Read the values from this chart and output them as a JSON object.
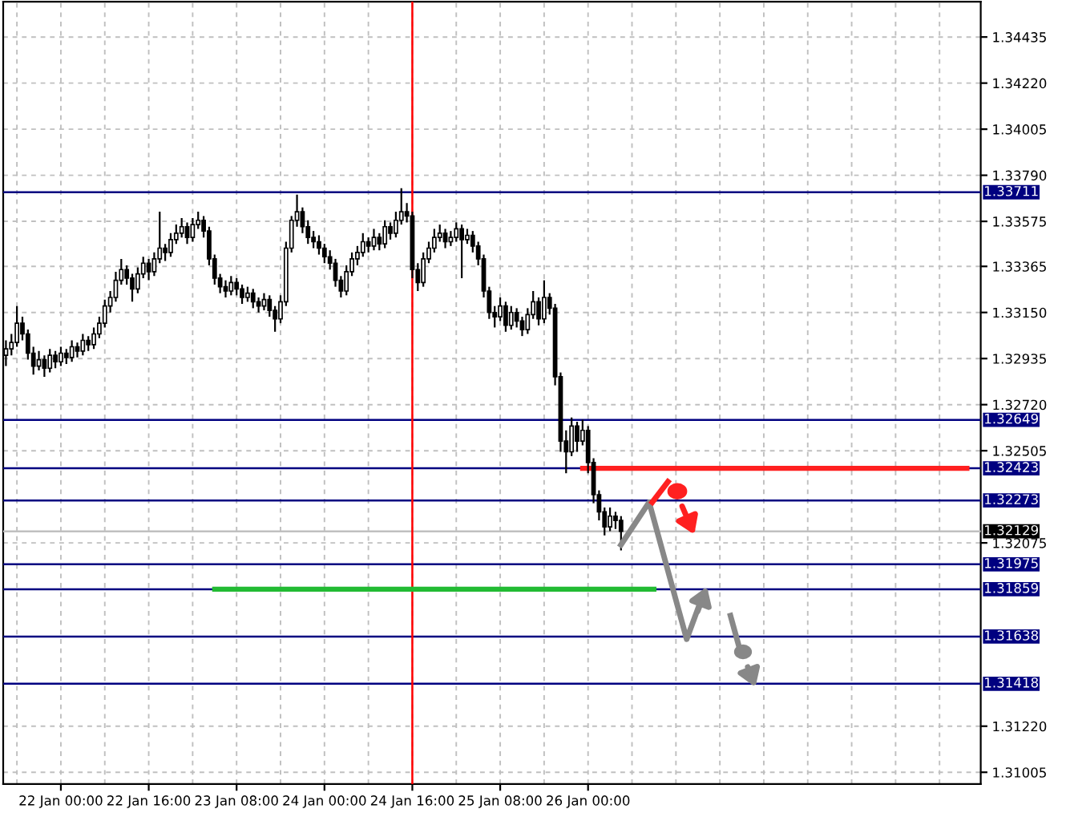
{
  "chart_data": {
    "type": "candlestick",
    "color": "#000000",
    "categories": [
      null,
      null,
      null,
      null,
      null,
      null,
      null,
      null,
      null,
      null,
      "22 Jan 00:00",
      null,
      null,
      null,
      null,
      null,
      null,
      null,
      null,
      null,
      null,
      null,
      null,
      null,
      null,
      null,
      "22 Jan 16:00",
      null,
      null,
      null,
      null,
      null,
      null,
      null,
      null,
      null,
      null,
      null,
      null,
      null,
      null,
      null,
      "23 Jan 08:00",
      null,
      null,
      null,
      null,
      null,
      null,
      null,
      null,
      null,
      null,
      null,
      null,
      null,
      null,
      null,
      "24 Jan 00:00",
      null,
      null,
      null,
      null,
      null,
      null,
      null,
      null,
      null,
      null,
      null,
      null,
      null,
      null,
      null,
      "24 Jan 16:00",
      null,
      null,
      null,
      null,
      null,
      null,
      null,
      null,
      null,
      null,
      null,
      null,
      null,
      null,
      null,
      "25 Jan 08:00",
      null,
      null,
      null,
      null,
      null,
      null,
      null,
      null,
      null,
      null,
      null,
      null,
      null,
      null,
      null,
      "26 Jan 00:00",
      null,
      null,
      null,
      null,
      null,
      null,
      null,
      null,
      null,
      null,
      null,
      null,
      null,
      null,
      null,
      null,
      null,
      null,
      null,
      null,
      null,
      null,
      null,
      null,
      null,
      null,
      null,
      null,
      null,
      null,
      null,
      null,
      null,
      null,
      null,
      null,
      null,
      null,
      null,
      null,
      null,
      null,
      null,
      null,
      null,
      null,
      null,
      null,
      null,
      null,
      null,
      null,
      null,
      null,
      null,
      null,
      null,
      null,
      null,
      null,
      null,
      null,
      null,
      null,
      null,
      null,
      null,
      null,
      null,
      null,
      null
    ],
    "ohlc": [
      [
        1.3295,
        1.3302,
        1.329,
        1.3298
      ],
      [
        1.3298,
        1.3305,
        1.3295,
        1.3301
      ],
      [
        1.3301,
        1.3318,
        1.3299,
        1.331
      ],
      [
        1.331,
        1.3313,
        1.3302,
        1.3305
      ],
      [
        1.3305,
        1.3307,
        1.3293,
        1.3296
      ],
      [
        1.3296,
        1.3299,
        1.3286,
        1.329
      ],
      [
        1.329,
        1.3297,
        1.3288,
        1.3293
      ],
      [
        1.3293,
        1.3295,
        1.3285,
        1.3289
      ],
      [
        1.3289,
        1.3298,
        1.3287,
        1.3295
      ],
      [
        1.3295,
        1.3297,
        1.3289,
        1.3292
      ],
      [
        1.3292,
        1.3299,
        1.329,
        1.3296
      ],
      [
        1.3296,
        1.3298,
        1.3291,
        1.3294
      ],
      [
        1.3294,
        1.3302,
        1.3292,
        1.3299
      ],
      [
        1.3299,
        1.3301,
        1.3294,
        1.3297
      ],
      [
        1.3297,
        1.3305,
        1.3295,
        1.3302
      ],
      [
        1.3302,
        1.3304,
        1.3297,
        1.33
      ],
      [
        1.33,
        1.3308,
        1.3298,
        1.3305
      ],
      [
        1.3305,
        1.3313,
        1.3303,
        1.331
      ],
      [
        1.331,
        1.3321,
        1.3308,
        1.3318
      ],
      [
        1.3318,
        1.3325,
        1.3315,
        1.3322
      ],
      [
        1.3322,
        1.3334,
        1.332,
        1.333
      ],
      [
        1.333,
        1.334,
        1.3328,
        1.3335
      ],
      [
        1.3335,
        1.3337,
        1.3328,
        1.3331
      ],
      [
        1.3331,
        1.3333,
        1.332,
        1.3326
      ],
      [
        1.3326,
        1.3336,
        1.3324,
        1.3333
      ],
      [
        1.3333,
        1.3341,
        1.3331,
        1.3338
      ],
      [
        1.3338,
        1.334,
        1.333,
        1.3334
      ],
      [
        1.3334,
        1.3343,
        1.3332,
        1.334
      ],
      [
        1.334,
        1.3362,
        1.3338,
        1.3345
      ],
      [
        1.3345,
        1.3347,
        1.3339,
        1.3343
      ],
      [
        1.3343,
        1.3352,
        1.3341,
        1.3349
      ],
      [
        1.3349,
        1.3356,
        1.3347,
        1.3352
      ],
      [
        1.3352,
        1.3359,
        1.335,
        1.3355
      ],
      [
        1.3355,
        1.3357,
        1.3347,
        1.335
      ],
      [
        1.335,
        1.3359,
        1.3348,
        1.3356
      ],
      [
        1.3356,
        1.3362,
        1.3354,
        1.3358
      ],
      [
        1.3358,
        1.336,
        1.335,
        1.3353
      ],
      [
        1.3353,
        1.3355,
        1.3337,
        1.334
      ],
      [
        1.334,
        1.3342,
        1.3328,
        1.3331
      ],
      [
        1.3331,
        1.3333,
        1.3324,
        1.3327
      ],
      [
        1.3327,
        1.333,
        1.3322,
        1.3325
      ],
      [
        1.3325,
        1.3332,
        1.3323,
        1.3329
      ],
      [
        1.3329,
        1.3331,
        1.3323,
        1.3326
      ],
      [
        1.3326,
        1.3328,
        1.3319,
        1.3322
      ],
      [
        1.3322,
        1.3327,
        1.332,
        1.3324
      ],
      [
        1.3324,
        1.3326,
        1.3317,
        1.332
      ],
      [
        1.332,
        1.3322,
        1.3315,
        1.3318
      ],
      [
        1.3318,
        1.3324,
        1.3316,
        1.3321
      ],
      [
        1.3321,
        1.3323,
        1.3313,
        1.3316
      ],
      [
        1.3316,
        1.3318,
        1.3306,
        1.3312
      ],
      [
        1.3312,
        1.3323,
        1.331,
        1.332
      ],
      [
        1.332,
        1.3348,
        1.3318,
        1.3345
      ],
      [
        1.3345,
        1.336,
        1.3343,
        1.3358
      ],
      [
        1.3358,
        1.337,
        1.3355,
        1.3362
      ],
      [
        1.3362,
        1.3364,
        1.3352,
        1.3355
      ],
      [
        1.3355,
        1.3358,
        1.3347,
        1.335
      ],
      [
        1.335,
        1.3353,
        1.3345,
        1.3348
      ],
      [
        1.3348,
        1.3351,
        1.3342,
        1.3345
      ],
      [
        1.3345,
        1.3347,
        1.3338,
        1.3341
      ],
      [
        1.3341,
        1.3344,
        1.3335,
        1.3338
      ],
      [
        1.3338,
        1.334,
        1.3327,
        1.333
      ],
      [
        1.333,
        1.3332,
        1.3322,
        1.3325
      ],
      [
        1.3325,
        1.3337,
        1.3323,
        1.3334
      ],
      [
        1.3334,
        1.3343,
        1.3332,
        1.334
      ],
      [
        1.334,
        1.3346,
        1.3337,
        1.3343
      ],
      [
        1.3343,
        1.3352,
        1.3341,
        1.3348
      ],
      [
        1.3348,
        1.335,
        1.3343,
        1.3346
      ],
      [
        1.3346,
        1.3354,
        1.3344,
        1.335
      ],
      [
        1.335,
        1.3352,
        1.3344,
        1.3347
      ],
      [
        1.3347,
        1.3358,
        1.3345,
        1.3355
      ],
      [
        1.3355,
        1.3357,
        1.3349,
        1.3352
      ],
      [
        1.3352,
        1.3362,
        1.335,
        1.3358
      ],
      [
        1.3358,
        1.3373,
        1.3356,
        1.3362
      ],
      [
        1.3362,
        1.3366,
        1.3357,
        1.336
      ],
      [
        1.336,
        1.3362,
        1.3331,
        1.3335
      ],
      [
        1.3335,
        1.3338,
        1.3325,
        1.3329
      ],
      [
        1.3329,
        1.3343,
        1.3327,
        1.334
      ],
      [
        1.334,
        1.3348,
        1.3338,
        1.3345
      ],
      [
        1.3345,
        1.3354,
        1.3343,
        1.335
      ],
      [
        1.335,
        1.3356,
        1.3348,
        1.3352
      ],
      [
        1.3352,
        1.3354,
        1.3345,
        1.3348
      ],
      [
        1.3348,
        1.3353,
        1.3346,
        1.335
      ],
      [
        1.335,
        1.3357,
        1.3348,
        1.3354
      ],
      [
        1.3354,
        1.3356,
        1.3331,
        1.3349
      ],
      [
        1.3349,
        1.3354,
        1.3347,
        1.3351
      ],
      [
        1.3351,
        1.3353,
        1.3343,
        1.3346
      ],
      [
        1.3346,
        1.3348,
        1.3337,
        1.334
      ],
      [
        1.334,
        1.3342,
        1.3322,
        1.3325
      ],
      [
        1.3325,
        1.3327,
        1.3312,
        1.3315
      ],
      [
        1.3315,
        1.3318,
        1.3308,
        1.3313
      ],
      [
        1.3313,
        1.3322,
        1.3311,
        1.3318
      ],
      [
        1.3318,
        1.332,
        1.3306,
        1.3309
      ],
      [
        1.3309,
        1.3318,
        1.3307,
        1.3315
      ],
      [
        1.3315,
        1.3317,
        1.3308,
        1.3311
      ],
      [
        1.3311,
        1.3313,
        1.3304,
        1.3307
      ],
      [
        1.3307,
        1.3317,
        1.3305,
        1.3314
      ],
      [
        1.3314,
        1.3325,
        1.3312,
        1.332
      ],
      [
        1.332,
        1.3322,
        1.3309,
        1.3312
      ],
      [
        1.3312,
        1.333,
        1.331,
        1.3322
      ],
      [
        1.3322,
        1.3324,
        1.3314,
        1.3317
      ],
      [
        1.3317,
        1.3319,
        1.3281,
        1.3285
      ],
      [
        1.3285,
        1.3287,
        1.325,
        1.3255
      ],
      [
        1.3255,
        1.326,
        1.324,
        1.325
      ],
      [
        1.325,
        1.3266,
        1.3248,
        1.3262
      ],
      [
        1.3262,
        1.3264,
        1.325,
        1.3255
      ],
      [
        1.3255,
        1.3265,
        1.3253,
        1.326
      ],
      [
        1.326,
        1.3262,
        1.324,
        1.3245
      ],
      [
        1.3245,
        1.3247,
        1.3226,
        1.323
      ],
      [
        1.323,
        1.3232,
        1.3218,
        1.3222
      ],
      [
        1.3222,
        1.3224,
        1.3211,
        1.3215
      ],
      [
        1.3215,
        1.3224,
        1.3213,
        1.322
      ],
      [
        1.322,
        1.3222,
        1.3214,
        1.3218
      ],
      [
        1.3218,
        1.322,
        1.3204,
        1.32129
      ],
      null,
      null,
      null,
      null,
      null,
      null,
      null,
      null,
      null,
      null,
      null,
      null,
      null,
      null,
      null,
      null,
      null,
      null,
      null,
      null,
      null,
      null,
      null,
      null,
      null,
      null,
      null,
      null,
      null,
      null,
      null,
      null,
      null,
      null,
      null,
      null,
      null,
      null,
      null,
      null,
      null,
      null,
      null,
      null,
      null,
      null,
      null,
      null,
      null,
      null,
      null,
      null,
      null,
      null,
      null,
      null,
      null,
      null,
      null,
      null,
      null,
      null,
      null,
      null,
      null
    ],
    "series": [
      {
        "type": "line",
        "color": "#ff2020",
        "values": [
          null,
          null,
          null,
          null,
          null,
          null,
          null,
          null,
          null,
          null,
          null,
          null,
          null,
          null,
          null,
          null,
          null,
          null,
          null,
          null,
          null,
          null,
          null,
          null,
          null,
          null,
          null,
          null,
          null,
          null,
          null,
          null,
          null,
          null,
          null,
          null,
          null,
          null,
          null,
          null,
          null,
          null,
          null,
          null,
          null,
          null,
          null,
          null,
          null,
          null,
          null,
          null,
          null,
          null,
          null,
          null,
          null,
          null,
          null,
          null,
          null,
          null,
          null,
          null,
          null,
          null,
          null,
          null,
          null,
          null,
          null,
          null,
          null,
          null,
          null,
          null,
          null,
          null,
          null,
          null,
          null,
          null,
          null,
          null,
          null,
          null,
          null,
          null,
          null,
          null,
          null,
          null,
          null,
          null,
          null,
          null,
          null,
          null,
          null,
          null,
          null,
          null,
          null,
          null,
          null,
          1.32423,
          1.32423,
          1.32423,
          1.32423,
          1.32423,
          1.32423,
          1.32423,
          1.32423,
          1.32423,
          1.32423,
          1.32423,
          1.32423,
          1.32423,
          1.32423,
          1.32423,
          1.32423,
          1.32423,
          1.32423,
          1.32423,
          1.32423,
          1.32423,
          1.32423,
          1.32423,
          1.32423,
          1.32423,
          1.32423,
          1.32423,
          1.32423,
          1.32423,
          1.32423,
          1.32423,
          1.32423,
          1.32423,
          1.32423,
          1.32423,
          1.32423,
          1.32423,
          1.32423,
          1.32423,
          1.32423,
          1.32423,
          1.32423,
          1.32423,
          1.32423,
          1.32423,
          1.32423,
          1.32423,
          1.32423,
          1.32423,
          1.32423,
          1.32423,
          1.32423,
          1.32423,
          1.32423,
          1.32423,
          1.32423,
          1.32423,
          1.32423,
          1.32423,
          1.32423,
          1.32423,
          1.32423,
          1.32423,
          1.32423,
          1.32423,
          1.32423,
          1.32423,
          1.32423,
          1.32423,
          1.32423,
          1.32423,
          null,
          null
        ]
      },
      {
        "type": "line",
        "color": "#22bb33",
        "values": [
          null,
          null,
          null,
          null,
          null,
          null,
          null,
          null,
          null,
          null,
          null,
          null,
          null,
          null,
          null,
          null,
          null,
          null,
          null,
          null,
          null,
          null,
          null,
          null,
          null,
          null,
          null,
          null,
          null,
          null,
          null,
          null,
          null,
          null,
          null,
          null,
          null,
          null,
          1.31859,
          1.31859,
          1.31859,
          1.31859,
          1.31859,
          1.31859,
          1.31859,
          1.31859,
          1.31859,
          1.31859,
          1.31859,
          1.31859,
          1.31859,
          1.31859,
          1.31859,
          1.31859,
          1.31859,
          1.31859,
          1.31859,
          1.31859,
          1.31859,
          1.31859,
          1.31859,
          1.31859,
          1.31859,
          1.31859,
          1.31859,
          1.31859,
          1.31859,
          1.31859,
          1.31859,
          1.31859,
          1.31859,
          1.31859,
          1.31859,
          1.31859,
          1.31859,
          1.31859,
          1.31859,
          1.31859,
          1.31859,
          1.31859,
          1.31859,
          1.31859,
          1.31859,
          1.31859,
          1.31859,
          1.31859,
          1.31859,
          1.31859,
          1.31859,
          1.31859,
          1.31859,
          1.31859,
          1.31859,
          1.31859,
          1.31859,
          1.31859,
          1.31859,
          1.31859,
          1.31859,
          1.31859,
          1.31859,
          1.31859,
          1.31859,
          1.31859,
          1.31859,
          1.31859,
          1.31859,
          1.31859,
          1.31859,
          1.31859,
          1.31859,
          1.31859,
          1.31859,
          1.31859,
          1.31859,
          1.31859,
          1.31859,
          1.31859,
          1.31859,
          null,
          null,
          null,
          null,
          null,
          null,
          null,
          null,
          null,
          null,
          null,
          null,
          null,
          null,
          null,
          null,
          null,
          null,
          null,
          null,
          null,
          null,
          null,
          null,
          null,
          null,
          null,
          null,
          null,
          null,
          null,
          null,
          null,
          null,
          null,
          null,
          null,
          null,
          null,
          null,
          null,
          null,
          null,
          null,
          null,
          null,
          null,
          null,
          null,
          null,
          null,
          null,
          null,
          null,
          null,
          null,
          null,
          null,
          null
        ]
      }
    ],
    "ref_lines": [
      {
        "axis": "y",
        "value": 1.33711,
        "label": "1.33711",
        "color": "#000080"
      },
      {
        "axis": "y",
        "value": 1.32649,
        "label": "1.32649",
        "color": "#000080"
      },
      {
        "axis": "y",
        "value": 1.32423,
        "label": "1.32423",
        "color": "#000080"
      },
      {
        "axis": "y",
        "value": 1.32273,
        "label": "1.32273",
        "color": "#000080"
      },
      {
        "axis": "y",
        "value": 1.32129,
        "label": "1.32129",
        "color": "#c0c0c0"
      },
      {
        "axis": "y",
        "value": 1.31975,
        "label": "1.31975",
        "color": "#000080"
      },
      {
        "axis": "y",
        "value": 1.31859,
        "label": "1.31859",
        "color": "#000080"
      },
      {
        "axis": "y",
        "value": 1.31638,
        "label": "1.31638",
        "color": "#000080"
      },
      {
        "axis": "y",
        "value": 1.31418,
        "label": "1.31418",
        "color": "#000080"
      },
      {
        "axis": "x",
        "value": "24 Jan 16:00",
        "color": "#ff0000"
      }
    ],
    "ylim": [
      1.3095,
      1.346
    ],
    "yticks": [
      {
        "value": 1.34435,
        "label": "1.34435"
      },
      {
        "value": 1.3422,
        "label": "1.34220"
      },
      {
        "value": 1.34005,
        "label": "1.34005"
      },
      {
        "value": 1.3379,
        "label": "1.33790"
      },
      {
        "value": 1.33575,
        "label": "1.33575"
      },
      {
        "value": 1.33365,
        "label": "1.33365"
      },
      {
        "value": 1.3315,
        "label": "1.33150"
      },
      {
        "value": 1.32935,
        "label": "1.32935"
      },
      {
        "value": 1.3272,
        "label": "1.32720"
      },
      {
        "value": 1.32505,
        "label": "1.32505"
      },
      {
        "value": 1.32075,
        "label": "1.32075"
      },
      {
        "value": 1.3122,
        "label": "1.31220"
      },
      {
        "value": 1.31005,
        "label": "1.31005"
      }
    ],
    "grid": true
  }
}
